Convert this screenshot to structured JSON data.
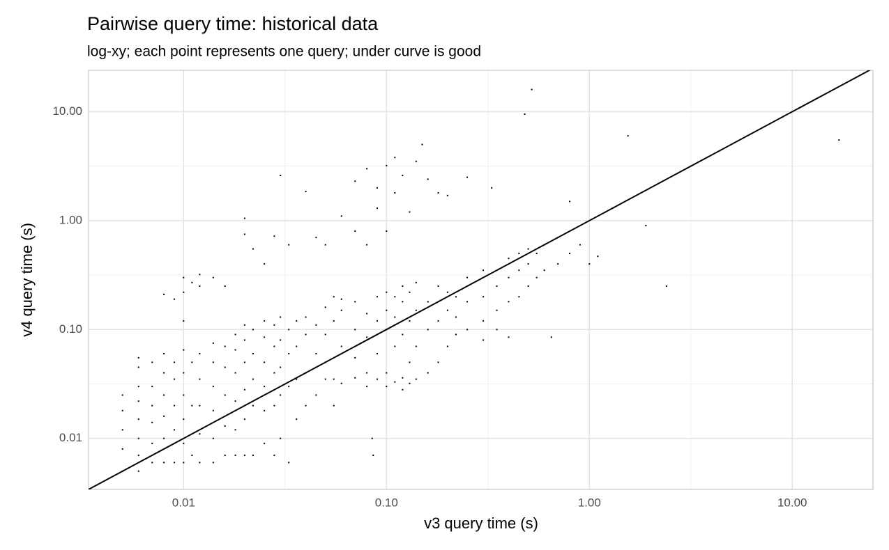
{
  "chart_data": {
    "type": "scatter",
    "title": "Pairwise query time: historical data",
    "subtitle": "log-xy; each point represents one query; under curve is good",
    "x_label": "v3 query time (s)",
    "y_label": "v4 query time (s)",
    "log_x": true,
    "log_y": true,
    "grid": true,
    "identity_line": true,
    "color": "#000000",
    "xlim": [
      0.0034,
      25
    ],
    "ylim": [
      0.0034,
      24
    ],
    "xticks": [
      0.01,
      {
        "value": 0.1,
        "label": "0.10"
      },
      {
        "value": 1,
        "label": "1.00"
      },
      {
        "value": 10,
        "label": "10.00"
      }
    ],
    "yticks": [
      0.01,
      {
        "value": 0.1,
        "label": "0.10"
      },
      {
        "value": 1,
        "label": "1.00"
      },
      {
        "value": 10,
        "label": "10.00"
      }
    ],
    "x": [
      0.005,
      0.005,
      0.005,
      0.005,
      0.005,
      0.006,
      0.006,
      0.006,
      0.006,
      0.006,
      0.006,
      0.006,
      0.006,
      0.007,
      0.007,
      0.007,
      0.007,
      0.007,
      0.007,
      0.008,
      0.008,
      0.008,
      0.008,
      0.008,
      0.008,
      0.008,
      0.009,
      0.009,
      0.009,
      0.009,
      0.009,
      0.009,
      0.01,
      0.01,
      0.01,
      0.01,
      0.01,
      0.01,
      0.01,
      0.01,
      0.01,
      0.011,
      0.011,
      0.011,
      0.011,
      0.012,
      0.012,
      0.012,
      0.012,
      0.012,
      0.012,
      0.012,
      0.014,
      0.014,
      0.014,
      0.014,
      0.014,
      0.014,
      0.014,
      0.016,
      0.016,
      0.016,
      0.016,
      0.016,
      0.016,
      0.018,
      0.018,
      0.018,
      0.018,
      0.018,
      0.018,
      0.02,
      0.02,
      0.02,
      0.02,
      0.02,
      0.02,
      0.02,
      0.02,
      0.022,
      0.022,
      0.022,
      0.022,
      0.022,
      0.022,
      0.025,
      0.025,
      0.025,
      0.025,
      0.025,
      0.025,
      0.025,
      0.028,
      0.028,
      0.028,
      0.028,
      0.028,
      0.028,
      0.03,
      0.03,
      0.03,
      0.03,
      0.03,
      0.03,
      0.033,
      0.033,
      0.033,
      0.033,
      0.033,
      0.036,
      0.036,
      0.036,
      0.036,
      0.04,
      0.04,
      0.04,
      0.04,
      0.04,
      0.045,
      0.045,
      0.045,
      0.045,
      0.05,
      0.05,
      0.05,
      0.05,
      0.05,
      0.055,
      0.055,
      0.055,
      0.055,
      0.06,
      0.06,
      0.06,
      0.06,
      0.06,
      0.07,
      0.07,
      0.07,
      0.07,
      0.07,
      0.07,
      0.08,
      0.08,
      0.08,
      0.08,
      0.08,
      0.08,
      0.09,
      0.09,
      0.09,
      0.09,
      0.09,
      0.09,
      0.1,
      0.1,
      0.1,
      0.1,
      0.1,
      0.1,
      0.1,
      0.11,
      0.11,
      0.11,
      0.11,
      0.11,
      0.11,
      0.12,
      0.12,
      0.12,
      0.12,
      0.12,
      0.12,
      0.13,
      0.13,
      0.13,
      0.13,
      0.13,
      0.14,
      0.14,
      0.14,
      0.14,
      0.14,
      0.15,
      0.16,
      0.16,
      0.16,
      0.16,
      0.18,
      0.18,
      0.18,
      0.18,
      0.2,
      0.2,
      0.2,
      0.2,
      0.22,
      0.22,
      0.22,
      0.25,
      0.25,
      0.25,
      0.25,
      0.3,
      0.3,
      0.3,
      0.3,
      0.35,
      0.35,
      0.35,
      0.33,
      0.4,
      0.4,
      0.4,
      0.4,
      0.45,
      0.45,
      0.45,
      0.5,
      0.5,
      0.5,
      0.55,
      0.55,
      0.6,
      0.6,
      0.65,
      0.7,
      0.7,
      0.8,
      0.8,
      0.9,
      1,
      0.52,
      0.48,
      1.55,
      17,
      1.9,
      2.4,
      1.3,
      1.1,
      0.085,
      0.086
    ],
    "values": [
      0.005,
      0.008,
      0.012,
      0.018,
      0.025,
      0.005,
      0.007,
      0.01,
      0.015,
      0.022,
      0.03,
      0.045,
      0.055,
      0.006,
      0.009,
      0.014,
      0.02,
      0.03,
      0.05,
      0.006,
      0.01,
      0.016,
      0.025,
      0.04,
      0.06,
      0.21,
      0.006,
      0.012,
      0.02,
      0.035,
      0.05,
      0.19,
      0.006,
      0.009,
      0.015,
      0.025,
      0.04,
      0.065,
      0.12,
      0.22,
      0.3,
      0.007,
      0.02,
      0.05,
      0.27,
      0.006,
      0.011,
      0.02,
      0.035,
      0.06,
      0.25,
      0.32,
      0.006,
      0.01,
      0.018,
      0.03,
      0.05,
      0.075,
      0.3,
      0.007,
      0.013,
      0.025,
      0.045,
      0.07,
      0.25,
      0.007,
      0.012,
      0.022,
      0.04,
      0.065,
      0.09,
      0.007,
      0.015,
      0.028,
      0.05,
      0.08,
      0.11,
      1.05,
      0.75,
      0.007,
      0.02,
      0.035,
      0.06,
      0.1,
      0.55,
      0.009,
      0.018,
      0.03,
      0.05,
      0.085,
      0.12,
      0.4,
      0.007,
      0.02,
      0.04,
      0.07,
      0.11,
      0.72,
      0.01,
      0.025,
      0.045,
      0.08,
      0.13,
      2.6,
      0.006,
      0.03,
      0.06,
      0.1,
      0.6,
      0.015,
      0.035,
      0.07,
      0.12,
      0.02,
      0.04,
      0.09,
      0.13,
      1.85,
      0.025,
      0.06,
      0.11,
      0.7,
      0.035,
      0.05,
      0.09,
      0.16,
      0.6,
      0.02,
      0.035,
      0.12,
      0.2,
      0.032,
      0.07,
      0.15,
      0.19,
      1.1,
      0.036,
      0.055,
      0.1,
      0.18,
      0.8,
      2.3,
      0.03,
      0.04,
      0.085,
      0.14,
      0.6,
      3,
      0.035,
      0.06,
      0.12,
      0.2,
      1.3,
      2,
      0.03,
      0.04,
      0.1,
      0.15,
      0.22,
      0.8,
      3.2,
      0.033,
      0.07,
      0.13,
      0.2,
      1.8,
      3.8,
      0.028,
      0.036,
      0.09,
      0.18,
      0.25,
      2.6,
      0.032,
      0.05,
      0.12,
      0.22,
      1.2,
      0.035,
      0.07,
      0.15,
      0.27,
      3.5,
      5,
      0.04,
      0.1,
      0.18,
      2.4,
      0.05,
      0.12,
      0.25,
      1.8,
      0.07,
      0.15,
      0.22,
      1.7,
      0.09,
      0.13,
      0.2,
      0.1,
      0.18,
      0.3,
      2.5,
      0.12,
      0.2,
      0.35,
      0.08,
      0.15,
      0.25,
      0.1,
      2,
      0.18,
      0.3,
      0.45,
      0.085,
      0.2,
      0.35,
      0.5,
      0.25,
      0.4,
      0.55,
      0.3,
      0.5,
      0.35,
      0.6,
      0.085,
      0.4,
      0.7,
      0.5,
      1.5,
      0.6,
      0.4,
      16,
      9.5,
      6,
      5.5,
      0.9,
      0.25,
      1.3,
      0.47,
      0.01,
      0.007
    ]
  }
}
